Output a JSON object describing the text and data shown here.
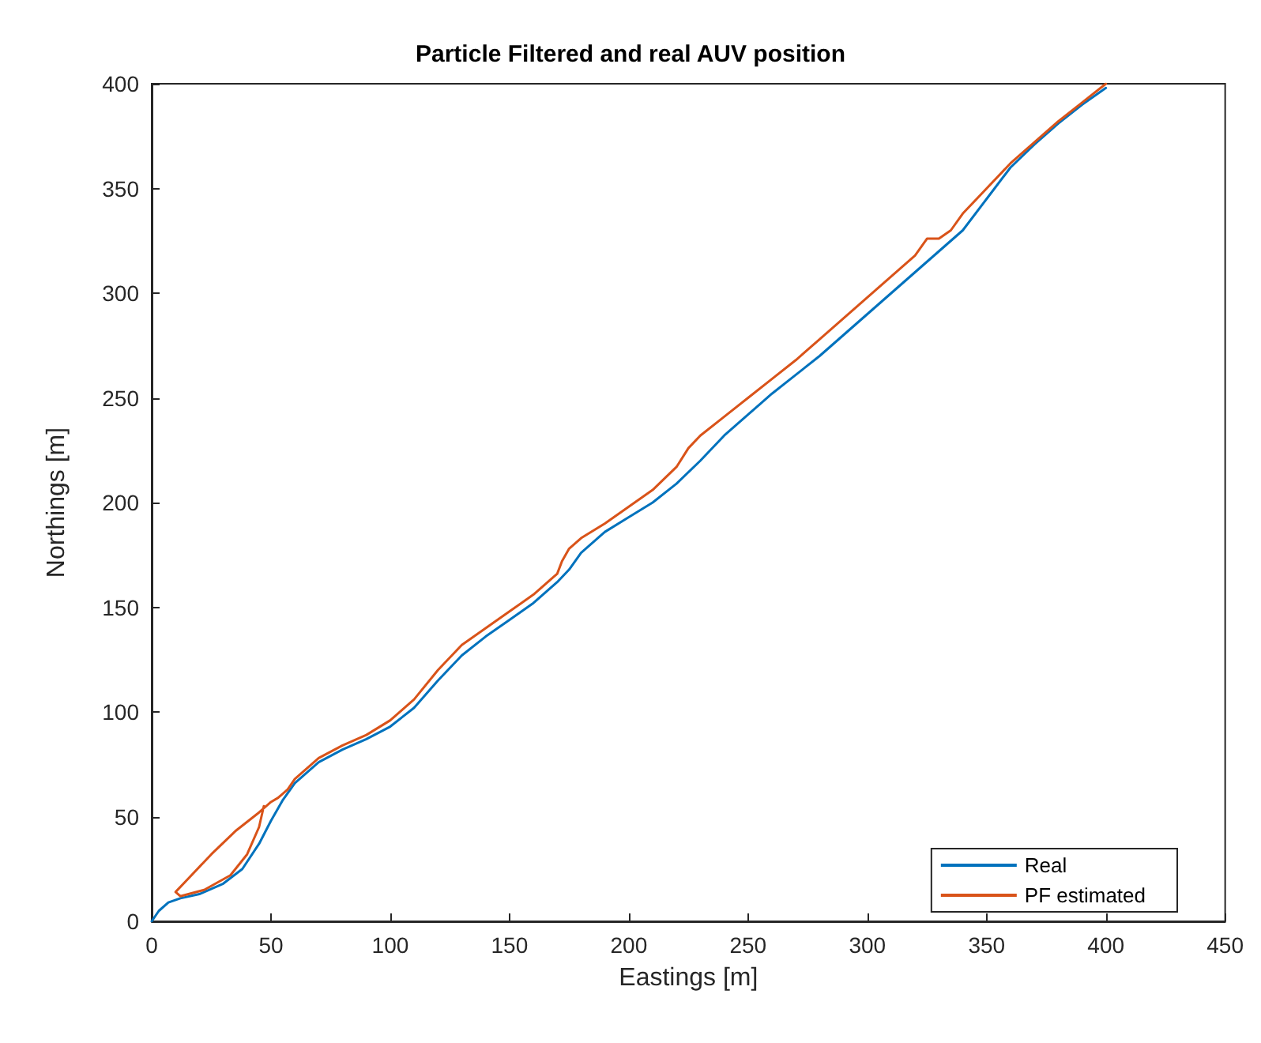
{
  "chart_data": {
    "type": "line",
    "title": "Particle Filtered and real AUV position",
    "xlabel": "Eastings [m]",
    "ylabel": "Northings [m]",
    "xlim": [
      0,
      450
    ],
    "xticks": [
      0,
      50,
      100,
      150,
      200,
      250,
      300,
      350,
      400,
      450
    ],
    "ylim": [
      0,
      400
    ],
    "yticks": [
      0,
      50,
      100,
      150,
      200,
      250,
      300,
      350,
      400
    ],
    "grid": false,
    "legend": "bottom right",
    "marker": "none",
    "line_style": "solid",
    "series": [
      {
        "name": "Real",
        "color": "#0072bd",
        "x": [
          0,
          3,
          7,
          12,
          20,
          30,
          38,
          45,
          50,
          55,
          60,
          70,
          80,
          90,
          100,
          110,
          120,
          130,
          140,
          150,
          160,
          170,
          175,
          180,
          190,
          200,
          210,
          220,
          230,
          240,
          250,
          260,
          270,
          280,
          290,
          300,
          310,
          320,
          330,
          340,
          350,
          360,
          370,
          380,
          390,
          400
        ],
        "values": [
          0,
          5,
          9,
          11,
          13,
          18,
          25,
          37,
          48,
          58,
          66,
          76,
          82,
          87,
          93,
          102,
          115,
          127,
          136,
          144,
          152,
          162,
          168,
          176,
          186,
          193,
          200,
          209,
          220,
          232,
          242,
          252,
          261,
          270,
          280,
          290,
          300,
          310,
          320,
          330,
          345,
          360,
          371,
          381,
          390,
          398
        ]
      },
      {
        "name": "PF estimated",
        "color": "#d95319",
        "x": [
          47,
          45,
          40,
          33,
          22,
          12,
          10,
          15,
          25,
          35,
          45,
          50,
          53,
          57,
          60,
          70,
          80,
          90,
          100,
          110,
          120,
          130,
          140,
          150,
          160,
          168,
          170,
          172,
          175,
          180,
          190,
          200,
          210,
          220,
          225,
          230,
          240,
          250,
          260,
          270,
          280,
          290,
          300,
          310,
          320,
          325,
          330,
          335,
          340,
          350,
          360,
          370,
          380,
          390,
          400
        ],
        "values": [
          55,
          45,
          32,
          22,
          15,
          12,
          14,
          20,
          32,
          43,
          52,
          57,
          59,
          63,
          68,
          78,
          84,
          89,
          96,
          106,
          120,
          132,
          140,
          148,
          156,
          164,
          166,
          172,
          178,
          183,
          190,
          198,
          206,
          217,
          226,
          232,
          241,
          250,
          259,
          268,
          278,
          288,
          298,
          308,
          318,
          326,
          326,
          330,
          338,
          350,
          362,
          372,
          382,
          391,
          400
        ]
      }
    ]
  }
}
